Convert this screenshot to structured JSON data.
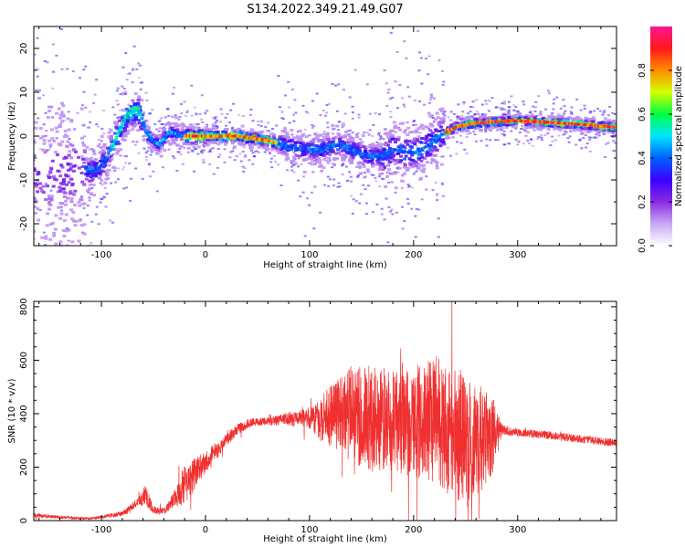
{
  "title": "S134.2022.349.21.49.G07",
  "colors": {
    "snr_line": "#f03030",
    "frame": "#000000",
    "colormap": [
      "#ffffff",
      "#c9a8f5",
      "#8a2be2",
      "#3a00ff",
      "#0060ff",
      "#00e5ff",
      "#00ff40",
      "#d4ff00",
      "#ff8c00",
      "#ff1a1a",
      "#ff1493"
    ]
  },
  "chart_data": [
    {
      "type": "heatmap",
      "xlabel": "Height of straight line (km)",
      "ylabel": "Frequency (Hz)",
      "xlim": [
        -165,
        395
      ],
      "ylim": [
        -25,
        25
      ],
      "xticks": [
        -100,
        0,
        100,
        200,
        300
      ],
      "yticks": [
        -20,
        -10,
        0,
        10,
        20
      ],
      "ridge": {
        "x": [
          -165,
          -140,
          -120,
          -105,
          -95,
          -85,
          -75,
          -65,
          -55,
          -45,
          -35,
          -20,
          0,
          30,
          60,
          90,
          110,
          130,
          150,
          170,
          180,
          200,
          215,
          225,
          240,
          260,
          300,
          340,
          370,
          395
        ],
        "y": [
          -9,
          -9,
          -8,
          -8,
          -5,
          0,
          5,
          6,
          0,
          -2,
          1,
          0,
          0,
          0,
          -1,
          -3,
          -3,
          -2,
          -4,
          -5,
          -3,
          -4,
          -2,
          0,
          2,
          3,
          3.5,
          3,
          2.5,
          2
        ]
      },
      "colorbar": {
        "label": "Normalized spectral amplitude",
        "range": [
          0,
          1
        ],
        "ticks": [
          "0.0",
          "0.2",
          "0.4",
          "0.6",
          "0.8"
        ]
      }
    },
    {
      "type": "line",
      "xlabel": "Height of straight line (km)",
      "ylabel": "SNR (10 * v/v)",
      "xlim": [
        -165,
        395
      ],
      "ylim": [
        0,
        820
      ],
      "xticks": [
        -100,
        0,
        100,
        200,
        300
      ],
      "yticks": [
        0,
        200,
        400,
        600,
        800
      ],
      "envelope": {
        "x": [
          -165,
          -140,
          -110,
          -80,
          -65,
          -58,
          -50,
          -40,
          -30,
          -20,
          -10,
          0,
          15,
          30,
          45,
          60,
          80,
          100,
          120,
          140,
          160,
          180,
          200,
          220,
          240,
          260,
          275,
          285,
          300,
          330,
          360,
          395
        ],
        "mean": [
          20,
          12,
          8,
          25,
          70,
          95,
          40,
          35,
          80,
          140,
          180,
          220,
          280,
          340,
          370,
          370,
          380,
          380,
          390,
          400,
          380,
          380,
          370,
          380,
          330,
          300,
          320,
          340,
          330,
          320,
          305,
          290
        ],
        "spread": [
          8,
          6,
          4,
          10,
          15,
          40,
          15,
          12,
          30,
          80,
          60,
          40,
          30,
          20,
          15,
          15,
          25,
          40,
          120,
          180,
          200,
          200,
          210,
          240,
          260,
          220,
          160,
          20,
          15,
          15,
          15,
          15
        ]
      }
    }
  ]
}
